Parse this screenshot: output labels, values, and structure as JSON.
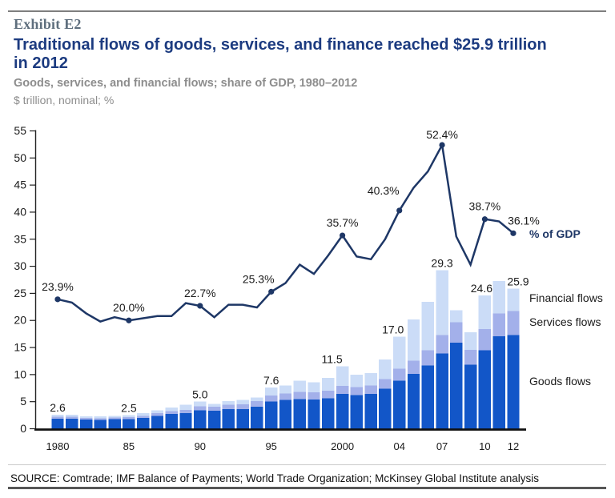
{
  "exhibit_label": "Exhibit E2",
  "title": "Traditional flows of goods, services, and finance reached $25.9 trillion in 2012",
  "subtitle": "Goods, services, and financial flows; share of GDP, 1980–2012",
  "unit_line": "$ trillion, nominal; %",
  "source_line": "SOURCE: Comtrade; IMF Balance of Payments; World Trade Organization; McKinsey Global Institute analysis",
  "colors": {
    "goods": "#1256c8",
    "services": "#a3b0ea",
    "financial": "#cbdcf7",
    "gdp_line": "#1e3766",
    "axis": "#222222",
    "label_text": "#1a1a1a",
    "title_blue": "#1c3b80",
    "subtitle_gray": "#8d8d8d",
    "exhibit_gray": "#5e6e7d"
  },
  "chart_data": {
    "type": "bar+line",
    "title": "Goods, services, and financial flows; share of GDP, 1980-2012",
    "ylabel": "$ trillion, nominal; %",
    "ylim": [
      0,
      55
    ],
    "y_ticks": [
      0,
      5,
      10,
      15,
      20,
      25,
      30,
      35,
      40,
      45,
      50,
      55
    ],
    "grid": false,
    "x": [
      1980,
      1981,
      1982,
      1983,
      1984,
      1985,
      1986,
      1987,
      1988,
      1989,
      1990,
      1991,
      1992,
      1993,
      1994,
      1995,
      1996,
      1997,
      1998,
      1999,
      2000,
      2001,
      2002,
      2003,
      2004,
      2005,
      2006,
      2007,
      2008,
      2009,
      2010,
      2011,
      2012
    ],
    "x_tick_labels": {
      "1980": "1980",
      "1985": "85",
      "1990": "90",
      "1995": "95",
      "2000": "2000",
      "2004": "04",
      "2007": "07",
      "2010": "10",
      "2012": "12"
    },
    "series": [
      {
        "name": "Goods flows",
        "type": "bar",
        "values": [
          1.85,
          1.85,
          1.7,
          1.65,
          1.75,
          1.8,
          2.0,
          2.4,
          2.7,
          2.9,
          3.4,
          3.3,
          3.6,
          3.6,
          4.1,
          5.0,
          5.3,
          5.5,
          5.4,
          5.6,
          6.4,
          6.2,
          6.4,
          7.4,
          8.9,
          10.1,
          11.7,
          13.9,
          15.9,
          11.8,
          14.5,
          17.1,
          17.3
        ]
      },
      {
        "name": "Services flows",
        "type": "bar",
        "values": [
          0.35,
          0.35,
          0.3,
          0.3,
          0.3,
          0.35,
          0.4,
          0.5,
          0.55,
          0.6,
          0.75,
          0.75,
          0.85,
          0.9,
          1.0,
          1.1,
          1.2,
          1.3,
          1.3,
          1.4,
          1.5,
          1.5,
          1.6,
          1.8,
          2.2,
          2.5,
          2.8,
          3.4,
          3.8,
          2.8,
          3.9,
          4.2,
          4.4
        ]
      },
      {
        "name": "Financial flows",
        "type": "bar",
        "values": [
          0.4,
          0.4,
          0.3,
          0.35,
          0.35,
          0.35,
          0.5,
          0.5,
          0.65,
          0.9,
          0.85,
          0.55,
          0.65,
          0.8,
          0.7,
          1.5,
          1.5,
          2.1,
          1.9,
          2.4,
          3.6,
          2.3,
          2.3,
          3.6,
          5.9,
          7.6,
          8.9,
          12.0,
          2.2,
          3.2,
          6.2,
          6.0,
          4.2
        ]
      },
      {
        "name": "% of GDP",
        "type": "line",
        "values": [
          23.9,
          23.3,
          21.3,
          19.8,
          20.6,
          20.0,
          20.4,
          20.8,
          20.8,
          23.2,
          22.7,
          20.6,
          22.9,
          22.9,
          22.4,
          25.3,
          26.9,
          30.3,
          28.6,
          32.0,
          35.7,
          31.8,
          31.3,
          35.0,
          40.3,
          44.5,
          47.5,
          52.4,
          35.5,
          30.3,
          38.7,
          38.3,
          36.1
        ]
      }
    ],
    "marker_years": [
      1980,
      1985,
      1990,
      1995,
      2000,
      2004,
      2007,
      2010,
      2012
    ],
    "bar_total_labels": [
      {
        "year": 1980,
        "text": "2.6"
      },
      {
        "year": 1985,
        "text": "2.5"
      },
      {
        "year": 1990,
        "text": "5.0"
      },
      {
        "year": 1995,
        "text": "7.6"
      },
      {
        "year": 2000,
        "text": "11.5"
      },
      {
        "year": 2004,
        "text": "17.0"
      },
      {
        "year": 2007,
        "text": "29.3"
      },
      {
        "year": 2010,
        "text": "24.6"
      },
      {
        "year": 2012,
        "text": "25.9"
      }
    ],
    "line_point_labels": [
      {
        "year": 1980,
        "text": "23.9%"
      },
      {
        "year": 1985,
        "text": "20.0%"
      },
      {
        "year": 1990,
        "text": "22.7%"
      },
      {
        "year": 1995,
        "text": "25.3%"
      },
      {
        "year": 2000,
        "text": "35.7%"
      },
      {
        "year": 2004,
        "text": "40.3%"
      },
      {
        "year": 2007,
        "text": "52.4%"
      },
      {
        "year": 2010,
        "text": "38.7%"
      },
      {
        "year": 2012,
        "text": "36.1%"
      }
    ],
    "legend": {
      "line_label": "% of GDP",
      "financial_label": "Financial flows",
      "services_label": "Services flows",
      "goods_label": "Goods flows"
    }
  }
}
